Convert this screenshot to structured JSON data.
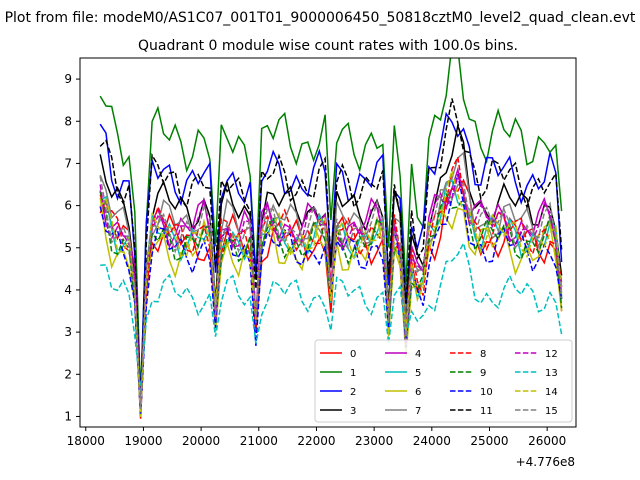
{
  "figure": {
    "suptitle": "Plot from file: modeM0/AS1C07_001T01_9000006450_50818cztM0_level2_quad_clean.evt"
  },
  "chart_data": {
    "type": "line",
    "title": "Quadrant 0 module wise count rates with 100.0s bins.",
    "xlabel": "",
    "ylabel": "",
    "x_offset_label": "+4.776e8",
    "xlim": [
      17900,
      26500
    ],
    "ylim": [
      0.75,
      9.5
    ],
    "xticks": [
      18000,
      19000,
      20000,
      21000,
      22000,
      23000,
      24000,
      25000,
      26000
    ],
    "yticks": [
      1,
      2,
      3,
      4,
      5,
      6,
      7,
      8,
      9
    ],
    "grid": false,
    "legend_placement": "lower-right",
    "legend_columns": 4,
    "x": [
      18250,
      18350,
      18450,
      18550,
      18650,
      18750,
      18850,
      18950,
      19050,
      19150,
      19250,
      19350,
      19450,
      19550,
      19650,
      19750,
      19850,
      19950,
      20050,
      20150,
      20250,
      20350,
      20450,
      20550,
      20650,
      20750,
      20850,
      20950,
      21050,
      21150,
      21250,
      21350,
      21450,
      21550,
      21650,
      21750,
      21850,
      21950,
      22050,
      22150,
      22250,
      22350,
      22450,
      22550,
      22650,
      22750,
      22850,
      22950,
      23050,
      23150,
      23250,
      23350,
      23450,
      23550,
      23650,
      23750,
      23850,
      23950,
      24050,
      24150,
      24250,
      24350,
      24450,
      24550,
      24650,
      24750,
      24850,
      24950,
      25050,
      25150,
      25250,
      25350,
      25450,
      25550,
      25650,
      25750,
      25850,
      25950,
      26050,
      26150,
      26250
    ],
    "series": [
      {
        "name": "0",
        "color": "#ff0000",
        "dash": "solid",
        "base": 5.2,
        "amp": 0.6,
        "phase": 0.0,
        "depth": 1.0
      },
      {
        "name": "1",
        "color": "#008000",
        "dash": "solid",
        "base": 7.6,
        "amp": 0.8,
        "phase": 1.3,
        "depth": 1.0
      },
      {
        "name": "2",
        "color": "#0000ff",
        "dash": "solid",
        "base": 6.7,
        "amp": 0.7,
        "phase": 2.1,
        "depth": 1.0
      },
      {
        "name": "3",
        "color": "#000000",
        "dash": "solid",
        "base": 6.0,
        "amp": 0.6,
        "phase": 0.7,
        "depth": 1.0
      },
      {
        "name": "4",
        "color": "#bf00bf",
        "dash": "solid",
        "base": 5.6,
        "amp": 0.6,
        "phase": 3.0,
        "depth": 1.0
      },
      {
        "name": "5",
        "color": "#00bfbf",
        "dash": "solid",
        "base": 5.3,
        "amp": 0.6,
        "phase": 1.9,
        "depth": 1.0
      },
      {
        "name": "6",
        "color": "#bfbf00",
        "dash": "solid",
        "base": 5.0,
        "amp": 0.7,
        "phase": 2.6,
        "depth": 1.0
      },
      {
        "name": "7",
        "color": "#808080",
        "dash": "solid",
        "base": 5.6,
        "amp": 0.6,
        "phase": 0.4,
        "depth": 1.0
      },
      {
        "name": "8",
        "color": "#ff0000",
        "dash": "dashed",
        "base": 5.4,
        "amp": 0.6,
        "phase": 1.1,
        "depth": 1.0
      },
      {
        "name": "9",
        "color": "#008000",
        "dash": "dashed",
        "base": 5.2,
        "amp": 0.6,
        "phase": 2.3,
        "depth": 1.0
      },
      {
        "name": "10",
        "color": "#0000ff",
        "dash": "dashed",
        "base": 5.0,
        "amp": 0.6,
        "phase": 0.9,
        "depth": 1.0
      },
      {
        "name": "11",
        "color": "#000000",
        "dash": "dashed",
        "base": 6.6,
        "amp": 0.7,
        "phase": 1.6,
        "depth": 1.0
      },
      {
        "name": "12",
        "color": "#bf00bf",
        "dash": "dashed",
        "base": 5.5,
        "amp": 0.6,
        "phase": 2.8,
        "depth": 1.0
      },
      {
        "name": "13",
        "color": "#00bfbf",
        "dash": "dashed",
        "base": 3.9,
        "amp": 0.5,
        "phase": 0.2,
        "depth": 0.7
      },
      {
        "name": "14",
        "color": "#bfbf00",
        "dash": "dashed",
        "base": 5.3,
        "amp": 0.6,
        "phase": 1.7,
        "depth": 1.0
      },
      {
        "name": "15",
        "color": "#808080",
        "dash": "dashed",
        "base": 5.5,
        "amp": 0.6,
        "phase": 2.5,
        "depth": 1.0
      }
    ]
  }
}
